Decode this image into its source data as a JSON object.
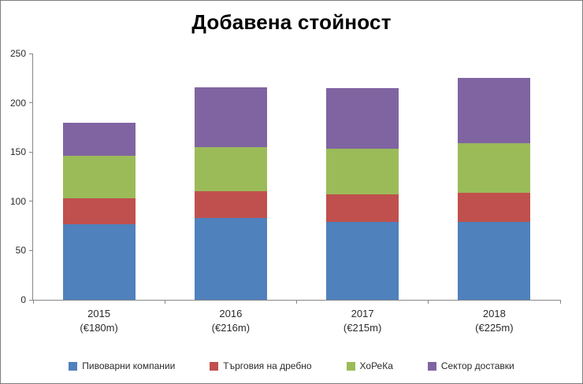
{
  "chart": {
    "title": "Добавена стойност"
  },
  "chart_data": {
    "type": "bar",
    "stacked": true,
    "title": "Добавена стойност",
    "categories": [
      "2015",
      "2016",
      "2017",
      "2018"
    ],
    "category_sublabels": [
      "(€180m)",
      "(€216m)",
      "(€215m)",
      "(€225m)"
    ],
    "totals": [
      180,
      216,
      215,
      225
    ],
    "series": [
      {
        "name": "Пивоварни компании",
        "color": "#4f81bd",
        "values": [
          77,
          83,
          79,
          79
        ]
      },
      {
        "name": "Търговия на дребно",
        "color": "#c0504d",
        "values": [
          26,
          27,
          28,
          30
        ]
      },
      {
        "name": "ХоРеКа",
        "color": "#9bbb59",
        "values": [
          43,
          45,
          46,
          50
        ]
      },
      {
        "name": "Сектор доставки",
        "color": "#8064a2",
        "values": [
          34,
          61,
          62,
          66
        ]
      }
    ],
    "ylim": [
      0,
      250
    ],
    "ytick_step": 50,
    "xlabel": "",
    "ylabel": "",
    "grid": false,
    "legend_position": "bottom"
  }
}
